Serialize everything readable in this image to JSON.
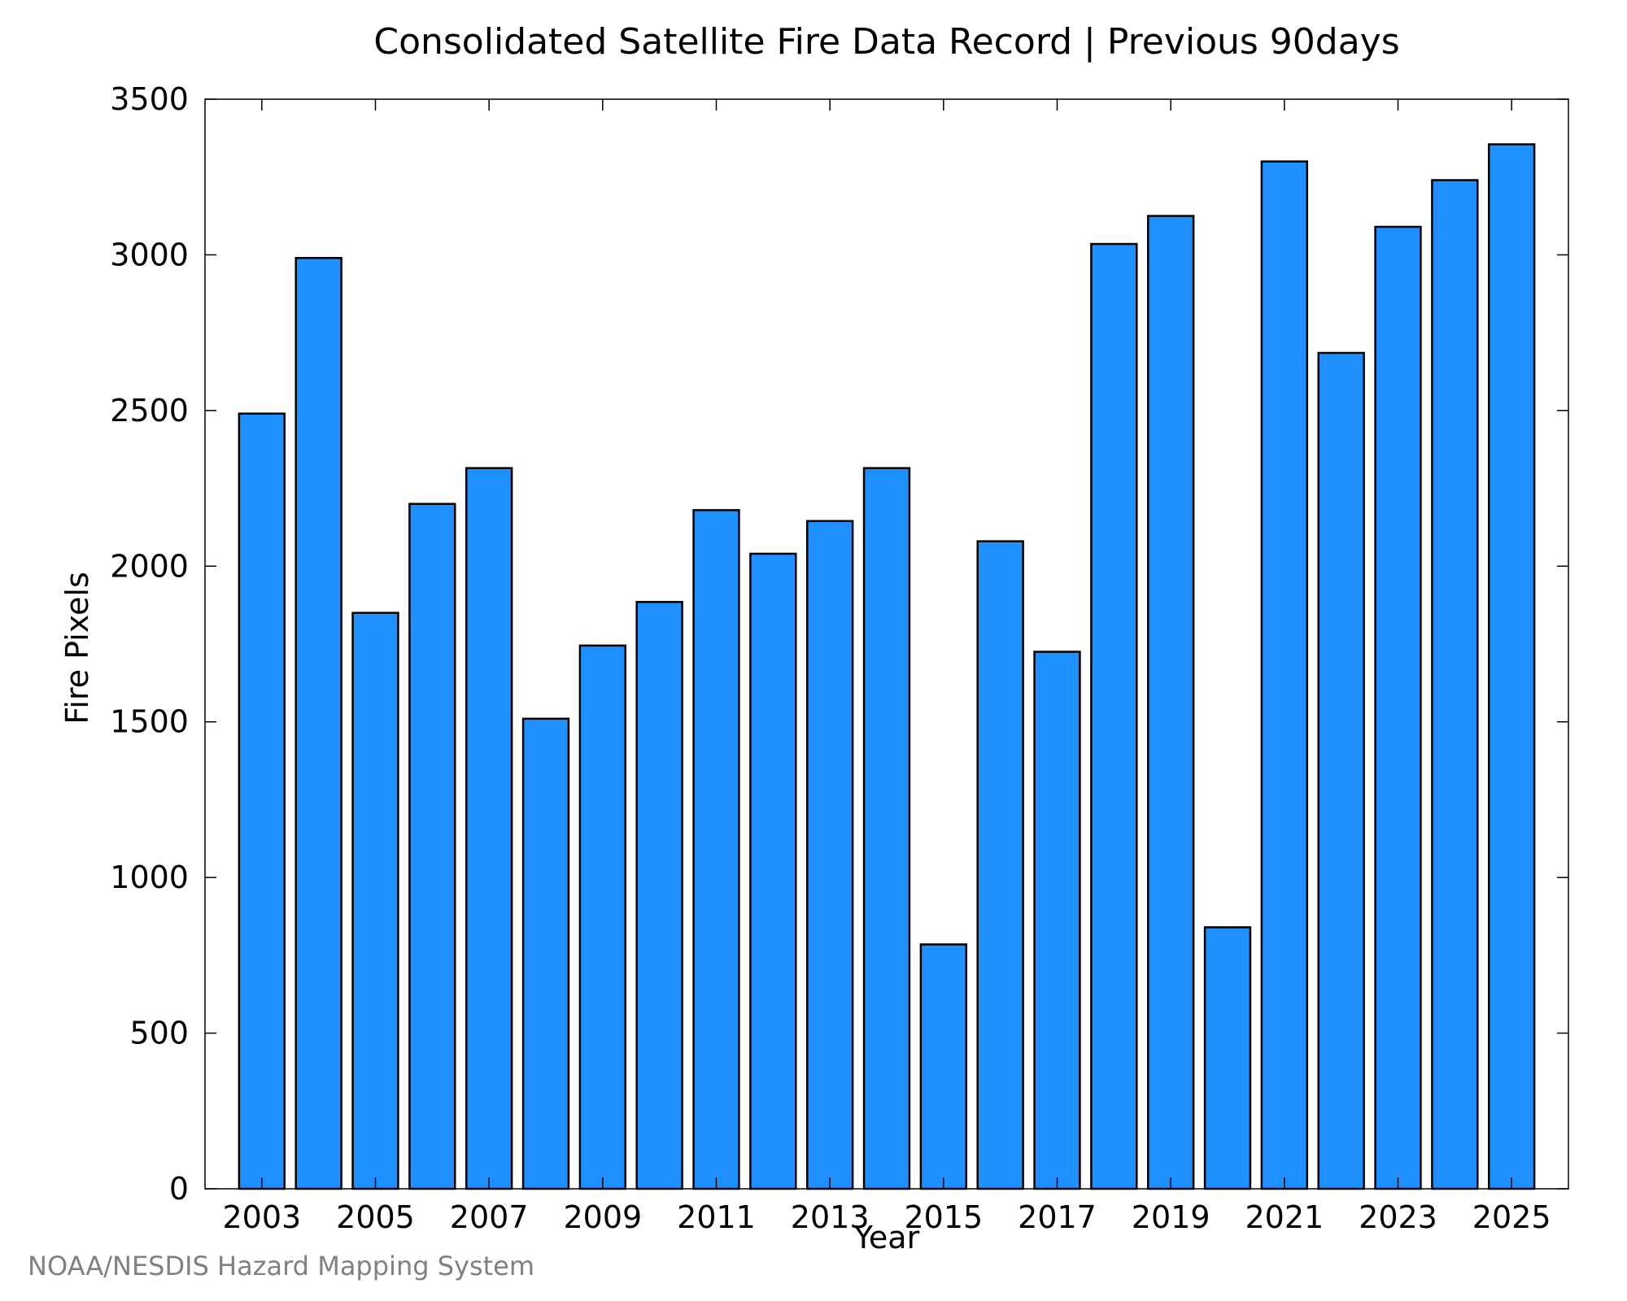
{
  "chart_data": {
    "type": "bar",
    "title": "Consolidated Satellite Fire Data Record | Previous 90days",
    "xlabel": "Year",
    "ylabel": "Fire Pixels",
    "categories": [
      2003,
      2004,
      2005,
      2006,
      2007,
      2008,
      2009,
      2010,
      2011,
      2012,
      2013,
      2014,
      2015,
      2016,
      2017,
      2018,
      2019,
      2020,
      2021,
      2022,
      2023,
      2024,
      2025
    ],
    "values": [
      2490,
      2990,
      1850,
      2200,
      2315,
      1510,
      1745,
      1885,
      2180,
      2040,
      2145,
      2315,
      785,
      2080,
      1725,
      3035,
      3125,
      840,
      3300,
      2685,
      3090,
      3240,
      3355
    ],
    "x_tick_labels": [
      "2003",
      "2005",
      "2007",
      "2009",
      "2011",
      "2013",
      "2015",
      "2017",
      "2019",
      "2021",
      "2023",
      "2025"
    ],
    "y_ticks": [
      0,
      500,
      1000,
      1500,
      2000,
      2500,
      3000,
      3500
    ],
    "ylim": [
      0,
      3500
    ],
    "xlim": [
      2002,
      2026
    ],
    "bar_color": "#1e90ff",
    "bar_edge_color": "#000000",
    "grid": false,
    "legend": "none"
  },
  "credit": "NOAA/NESDIS Hazard Mapping System"
}
